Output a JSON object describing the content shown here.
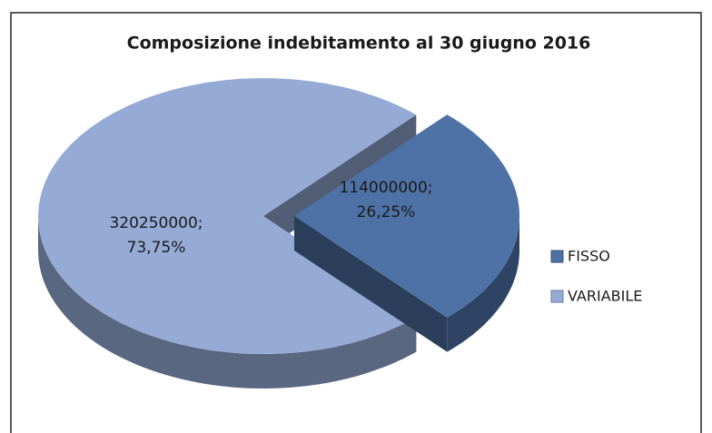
{
  "chart_data": {
    "type": "pie",
    "title": "Composizione indebitamento al 30 giugno 2016",
    "categories": [
      "FISSO",
      "VARIABILE"
    ],
    "values": [
      114000000,
      320250000
    ],
    "value_labels": [
      [
        "114000000;",
        "26,25%"
      ],
      [
        "320250000;",
        "73,75%"
      ]
    ],
    "colors": [
      "#4f72a6",
      "#95abd6"
    ],
    "legend": "right"
  }
}
